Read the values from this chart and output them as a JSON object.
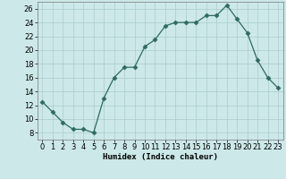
{
  "x": [
    0,
    1,
    2,
    3,
    4,
    5,
    6,
    7,
    8,
    9,
    10,
    11,
    12,
    13,
    14,
    15,
    16,
    17,
    18,
    19,
    20,
    21,
    22,
    23
  ],
  "y": [
    12.5,
    11.0,
    9.5,
    8.5,
    8.5,
    8.0,
    13.0,
    16.0,
    17.5,
    17.5,
    20.5,
    21.5,
    23.5,
    24.0,
    24.0,
    24.0,
    25.0,
    25.0,
    26.5,
    24.5,
    22.5,
    18.5,
    16.0,
    14.5
  ],
  "xlabel": "Humidex (Indice chaleur)",
  "xlim": [
    -0.5,
    23.5
  ],
  "ylim": [
    7,
    27
  ],
  "yticks": [
    8,
    10,
    12,
    14,
    16,
    18,
    20,
    22,
    24,
    26
  ],
  "xticks": [
    0,
    1,
    2,
    3,
    4,
    5,
    6,
    7,
    8,
    9,
    10,
    11,
    12,
    13,
    14,
    15,
    16,
    17,
    18,
    19,
    20,
    21,
    22,
    23
  ],
  "line_color": "#2e6b5e",
  "marker": "D",
  "marker_size": 2.5,
  "bg_color": "#cce8e8",
  "grid_color": "#aacccc",
  "label_fontsize": 6.5,
  "tick_fontsize": 6.0
}
